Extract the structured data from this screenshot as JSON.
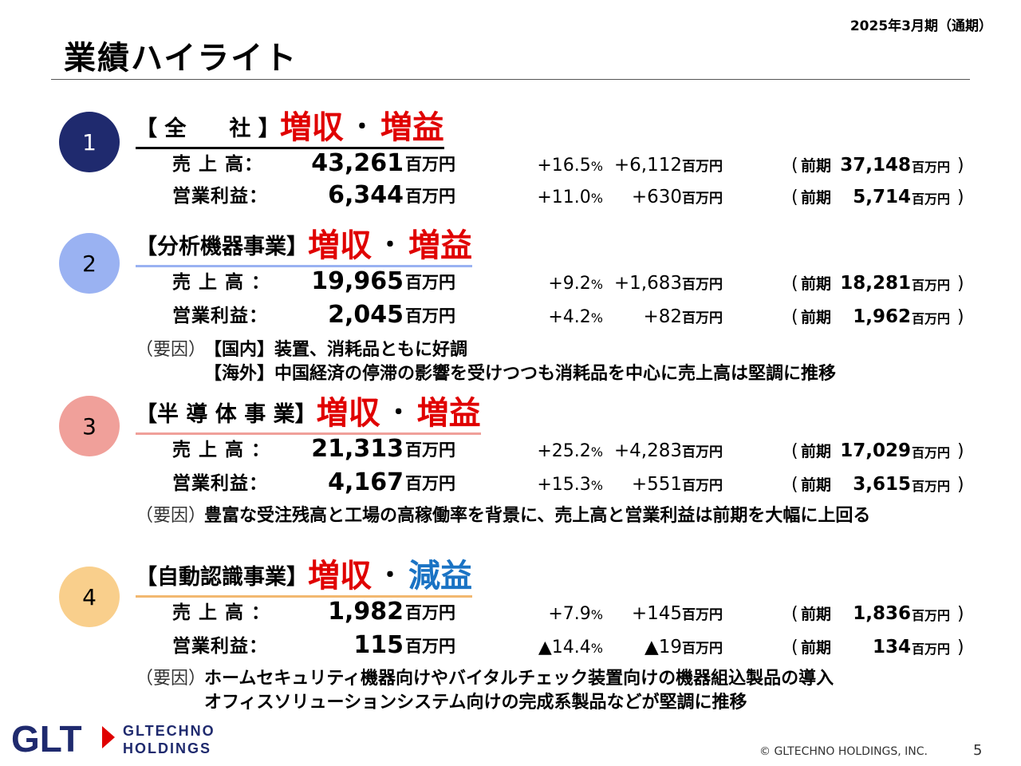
{
  "header": {
    "period": "2025年3月期（通期）",
    "title": "業績ハイライト"
  },
  "sections": [
    {
      "number": "1",
      "name": "【 全　　社 】",
      "rev_label": "増収",
      "profit_label": "増益",
      "accent": "#1f2a6e",
      "rows": [
        {
          "label": "売 上 高：",
          "value": "43,261",
          "unit": "百万円",
          "pct": "+16.5",
          "pct_sign": "%",
          "diff": "+6,112",
          "diff_unit": "百万円",
          "prev_label": "前期",
          "prev_value": "37,148",
          "prev_unit": "百万円"
        },
        {
          "label": "営業利益：",
          "value": "6,344",
          "unit": "百万円",
          "pct": "+11.0",
          "pct_sign": "%",
          "diff": "+630",
          "diff_unit": "百万円",
          "prev_label": "前期",
          "prev_value": "5,714",
          "prev_unit": "百万円"
        }
      ],
      "factor_tag": "",
      "factors": []
    },
    {
      "number": "2",
      "name": "【分析機器事業】",
      "rev_label": "増収",
      "profit_label": "増益",
      "accent": "#9ab2f2",
      "rows": [
        {
          "label": "売 上 高 ：",
          "value": "19,965",
          "unit": "百万円",
          "pct": "+9.2",
          "pct_sign": "%",
          "diff": "+1,683",
          "diff_unit": "百万円",
          "prev_label": "前期",
          "prev_value": "18,281",
          "prev_unit": "百万円"
        },
        {
          "label": "営業利益：",
          "value": "2,045",
          "unit": "百万円",
          "pct": "+4.2",
          "pct_sign": "%",
          "diff": "+82",
          "diff_unit": "百万円",
          "prev_label": "前期",
          "prev_value": "1,962",
          "prev_unit": "百万円"
        }
      ],
      "factor_tag": "（要因）",
      "factors": [
        "【国内】装置、消耗品ともに好調",
        "【海外】中国経済の停滞の影響を受けつつも消耗品を中心に売上高は堅調に推移"
      ]
    },
    {
      "number": "3",
      "name": "【半 導 体 事 業】",
      "rev_label": "増収",
      "profit_label": "増益",
      "accent": "#f0a09a",
      "rows": [
        {
          "label": "売 上 高 ：",
          "value": "21,313",
          "unit": "百万円",
          "pct": "+25.2",
          "pct_sign": "%",
          "diff": "+4,283",
          "diff_unit": "百万円",
          "prev_label": "前期",
          "prev_value": "17,029",
          "prev_unit": "百万円"
        },
        {
          "label": "営業利益：",
          "value": "4,167",
          "unit": "百万円",
          "pct": "+15.3",
          "pct_sign": "%",
          "diff": "+551",
          "diff_unit": "百万円",
          "prev_label": "前期",
          "prev_value": "3,615",
          "prev_unit": "百万円"
        }
      ],
      "factor_tag": "（要因）",
      "factors": [
        "豊富な受注残高と工場の高稼働率を背景に、売上高と営業利益は前期を大幅に上回る"
      ]
    },
    {
      "number": "4",
      "name": "【自動認識事業】",
      "rev_label": "増収",
      "profit_label": "減益",
      "accent": "#f9cf8c",
      "rows": [
        {
          "label": "売 上 高 ：",
          "value": "1,982",
          "unit": "百万円",
          "pct": "+7.9",
          "pct_sign": "%",
          "diff": "+145",
          "diff_unit": "百万円",
          "prev_label": "前期",
          "prev_value": "1,836",
          "prev_unit": "百万円"
        },
        {
          "label": "営業利益：",
          "value": "115",
          "unit": "百万円",
          "pct": "▲14.4",
          "pct_sign": "%",
          "diff": "▲19",
          "diff_unit": "百万円",
          "prev_label": "前期",
          "prev_value": "134",
          "prev_unit": "百万円"
        }
      ],
      "factor_tag": "（要因）",
      "factors": [
        "ホームセキュリティ機器向けやバイタルチェック装置向けの機器組込製品の導入",
        "オフィスソリューションシステム向けの完成系製品などが堅調に推移"
      ]
    }
  ],
  "footer": {
    "logo_mark": "GLT",
    "logo_line1": "GLTECHNO",
    "logo_line2": "HOLDINGS",
    "copyright": "© GLTECHNO HOLDINGS, INC.",
    "page": "5"
  }
}
